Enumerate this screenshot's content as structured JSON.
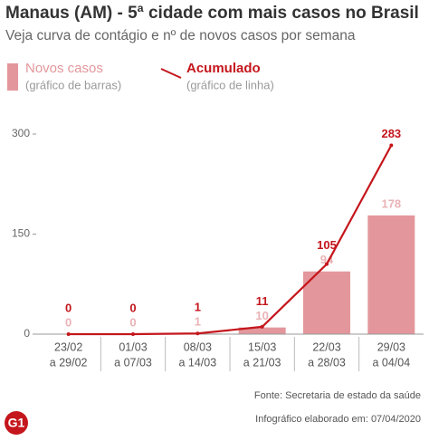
{
  "chart_data": {
    "type": "combo",
    "title": "Manaus (AM) - 5ª cidade com mais casos no Brasil",
    "subtitle": "Veja curva de contágio e nº de novos casos por semana",
    "categories": [
      [
        "23/02",
        "a 29/02"
      ],
      [
        "01/03",
        "a 07/03"
      ],
      [
        "08/03",
        "a 14/03"
      ],
      [
        "15/03",
        "a 21/03"
      ],
      [
        "22/03",
        "a 28/03"
      ],
      [
        "29/03",
        "a 04/04"
      ]
    ],
    "series": [
      {
        "name": "Novos casos",
        "note": "(gráfico de barras)",
        "type": "bar",
        "color": "#e3979c",
        "values": [
          0,
          0,
          1,
          10,
          94,
          178
        ]
      },
      {
        "name": "Acumulado",
        "note": "(gráfico de linha)",
        "type": "line",
        "color": "#c4161c",
        "values": [
          0,
          0,
          1,
          11,
          105,
          283
        ]
      }
    ],
    "ylim": [
      0,
      300
    ],
    "yticks": [
      0,
      150,
      300
    ],
    "grid": false,
    "source": "Fonte: Secretaria de estado da saúde",
    "credit": "Infográfico elaborado em: 07/04/2020",
    "logo": "G1"
  }
}
